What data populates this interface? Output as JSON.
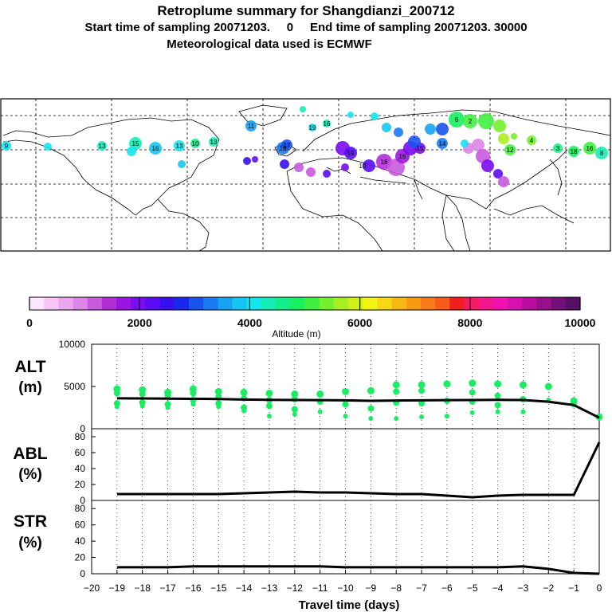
{
  "header": {
    "title": "Retroplume summary for Shangdianzi_200712",
    "sampling": "Start time of sampling 20071203.     0     End time of sampling 20071203. 30000",
    "met": "Meteorological data used is ECMWF"
  },
  "colorbar": {
    "ticks": [
      "0",
      "2000",
      "4000",
      "6000",
      "8000",
      "10000"
    ],
    "label": "Altitude (m)",
    "colors": [
      "#ffe6ff",
      "#f7c6f7",
      "#eaa6ee",
      "#dc86e6",
      "#c95ade",
      "#b22fd6",
      "#9a16e0",
      "#7a0cf0",
      "#5a0cf5",
      "#3810f0",
      "#1a28ec",
      "#1a52ee",
      "#1a7af0",
      "#18a2f2",
      "#16c6f2",
      "#14e6ee",
      "#14eeb6",
      "#14ee8a",
      "#18f060",
      "#40f040",
      "#74f02c",
      "#a8ee20",
      "#d2f018",
      "#f4f414",
      "#f8d814",
      "#f8b814",
      "#f89a14",
      "#f87a18",
      "#f85a1a",
      "#f01e1e",
      "#f41a66",
      "#f4148e",
      "#f012ae",
      "#d810b2",
      "#b80e9e",
      "#96108a",
      "#741078",
      "#561066"
    ]
  },
  "map_labels": [
    "9",
    "13",
    "15",
    "16",
    "13",
    "10",
    "13",
    "11",
    "16",
    "19",
    "16",
    "17",
    "19",
    "18",
    "10",
    "16",
    "15",
    "14",
    "6",
    "2",
    "4",
    "12",
    "3",
    "18",
    "16",
    "8"
  ],
  "chart_data": [
    {
      "name": "ALT",
      "type": "line",
      "ylabel": "ALT\n(m)",
      "ylim": [
        0,
        10000
      ],
      "yticks": [
        "10000",
        "5000",
        "0"
      ],
      "x": [
        -19,
        -18,
        -17,
        -16,
        -15,
        -14,
        -13,
        -12,
        -11,
        -10,
        -9,
        -8,
        -7,
        -6,
        -5,
        -4,
        -3,
        -2,
        -1,
        0
      ],
      "values": [
        3600,
        3580,
        3560,
        3540,
        3520,
        3460,
        3420,
        3400,
        3380,
        3360,
        3300,
        3340,
        3360,
        3380,
        3400,
        3420,
        3400,
        3200,
        2800,
        1300
      ],
      "scatter_altitudes": [
        [
          4700,
          4200,
          3000,
          2600
        ],
        [
          4600,
          4100,
          3100,
          2700
        ],
        [
          4300,
          3900,
          2900,
          2500
        ],
        [
          4700,
          4200,
          3400,
          2900
        ],
        [
          4400,
          3800,
          3000,
          2600
        ],
        [
          4300,
          3600,
          2500,
          2100
        ],
        [
          4200,
          3400,
          2700,
          1500
        ],
        [
          4100,
          3500,
          2300,
          1700
        ],
        [
          4100,
          3200,
          2000
        ],
        [
          4400,
          2900,
          1500
        ],
        [
          4500,
          2400,
          1200
        ],
        [
          5200,
          4400,
          3100,
          1200
        ],
        [
          5200,
          4500,
          3000,
          1400
        ],
        [
          5300,
          3300,
          1500
        ],
        [
          5400,
          4300,
          3200,
          1900
        ],
        [
          5300,
          3900,
          2800,
          2000
        ],
        [
          5200,
          3500,
          2000
        ],
        [
          5000,
          3400
        ],
        [
          3300,
          3000,
          2800
        ],
        [
          1400
        ]
      ]
    },
    {
      "name": "ABL",
      "type": "line",
      "ylabel": "ABL\n(%)",
      "ylim": [
        0,
        90
      ],
      "yticks": [
        "80",
        "60",
        "40",
        "20",
        "0"
      ],
      "x": [
        -19,
        -18,
        -17,
        -16,
        -15,
        -14,
        -13,
        -12,
        -11,
        -10,
        -9,
        -8,
        -7,
        -6,
        -5,
        -4,
        -3,
        -2,
        -1,
        0
      ],
      "values": [
        8,
        8,
        8,
        8,
        8,
        9,
        10,
        11,
        10,
        10,
        9,
        8,
        8,
        6,
        4,
        6,
        7,
        7,
        7,
        73
      ]
    },
    {
      "name": "STR",
      "type": "line",
      "ylabel": "STR\n(%)",
      "ylim": [
        0,
        90
      ],
      "yticks": [
        "80",
        "60",
        "40",
        "20",
        "0"
      ],
      "x": [
        -19,
        -18,
        -17,
        -16,
        -15,
        -14,
        -13,
        -12,
        -11,
        -10,
        -9,
        -8,
        -7,
        -6,
        -5,
        -4,
        -3,
        -2,
        -1,
        0
      ],
      "values": [
        8,
        8,
        8,
        9,
        9,
        9,
        9,
        9,
        9,
        8,
        8,
        8,
        8,
        8,
        8,
        8,
        9,
        6,
        1,
        0
      ],
      "xlabel": "Travel time (days)",
      "xticks": [
        "−20",
        "−19",
        "−18",
        "−17",
        "−16",
        "−15",
        "−14",
        "−13",
        "−12",
        "−11",
        "−10",
        "−9",
        "−8",
        "−7",
        "−6",
        "−5",
        "−4",
        "−3",
        "−2",
        "−1",
        "0"
      ]
    }
  ]
}
